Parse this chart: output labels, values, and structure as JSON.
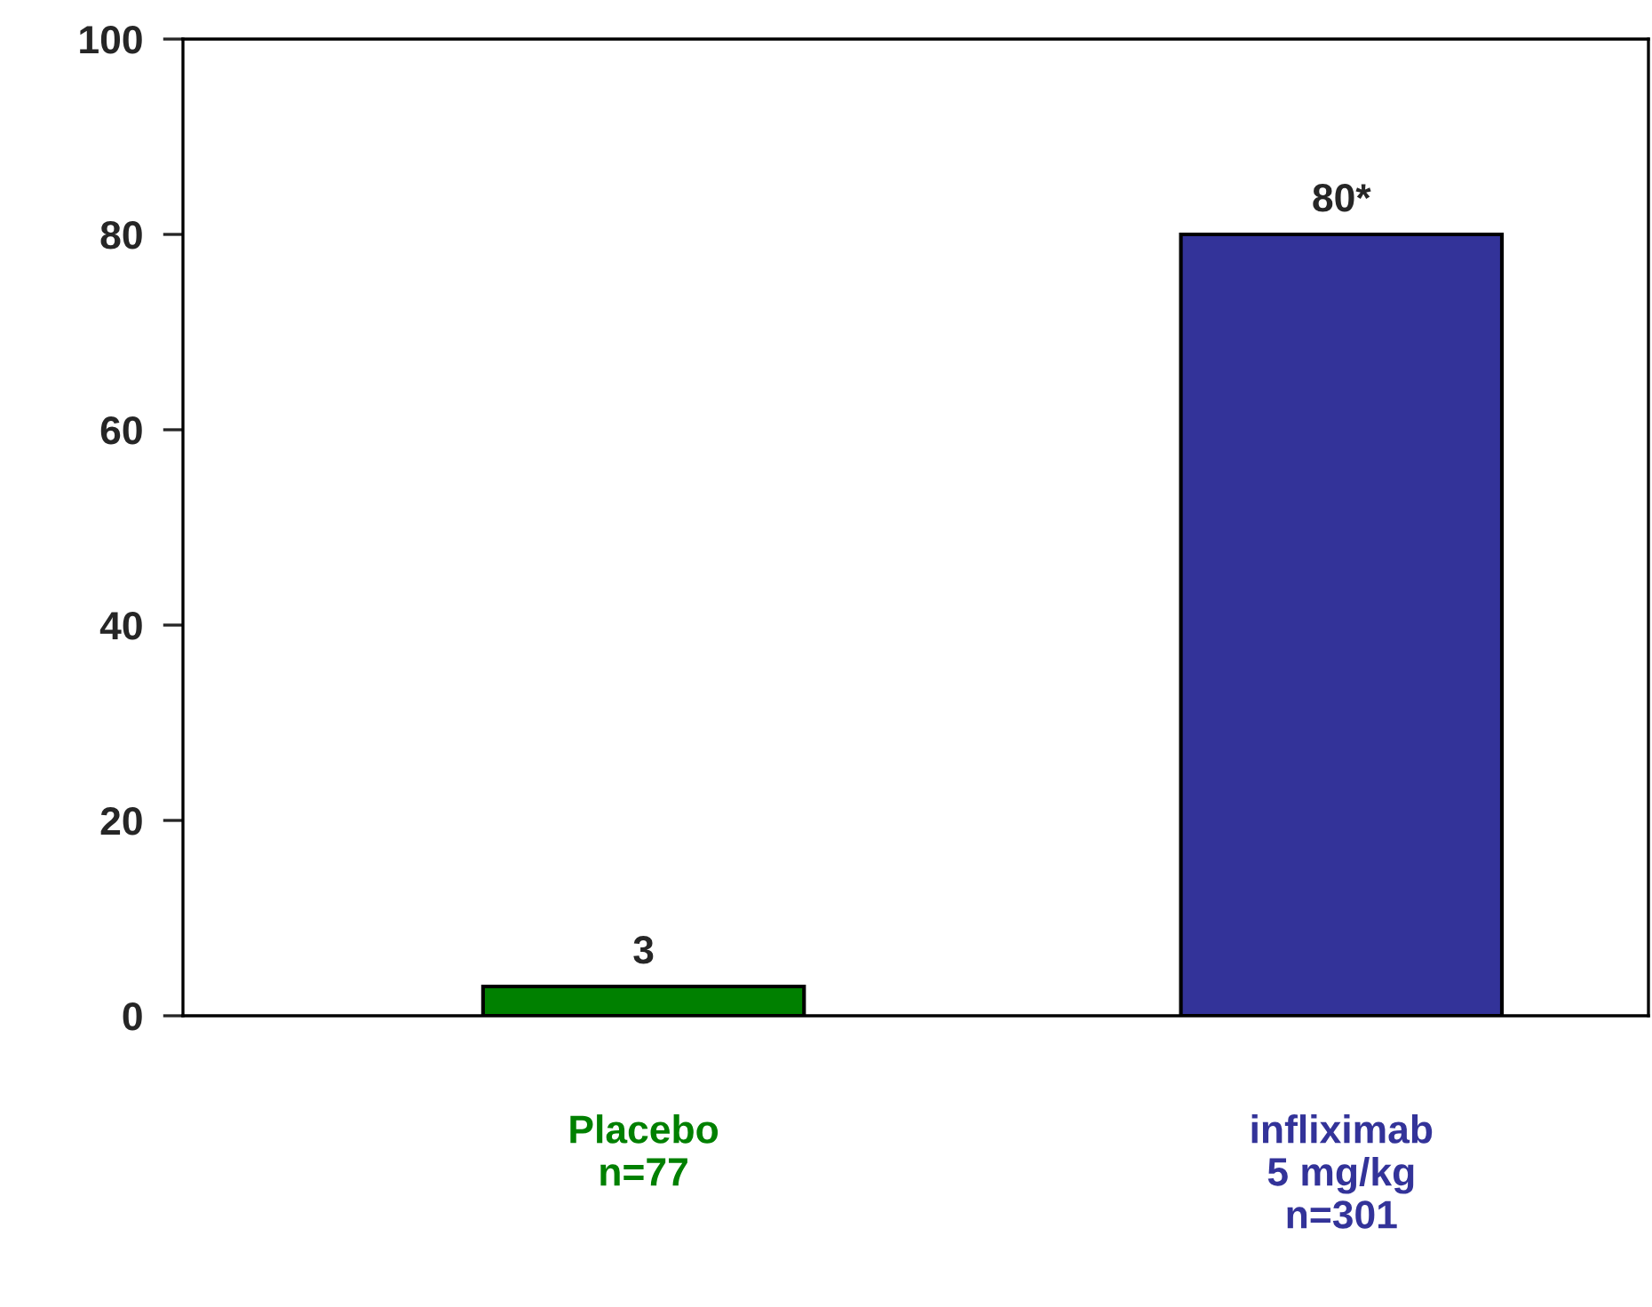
{
  "chart_data": {
    "type": "bar",
    "categories": [
      "Placebo\nn=77",
      "infliximab\n5 mg/kg\nn=301"
    ],
    "values": [
      3,
      80
    ],
    "colors": [
      "#008000",
      "#333399"
    ],
    "value_labels": [
      "3",
      "80*"
    ],
    "ylim": [
      0,
      100
    ],
    "yticks": [
      0,
      20,
      40,
      60,
      80,
      100
    ],
    "grid": false,
    "legend": false
  }
}
